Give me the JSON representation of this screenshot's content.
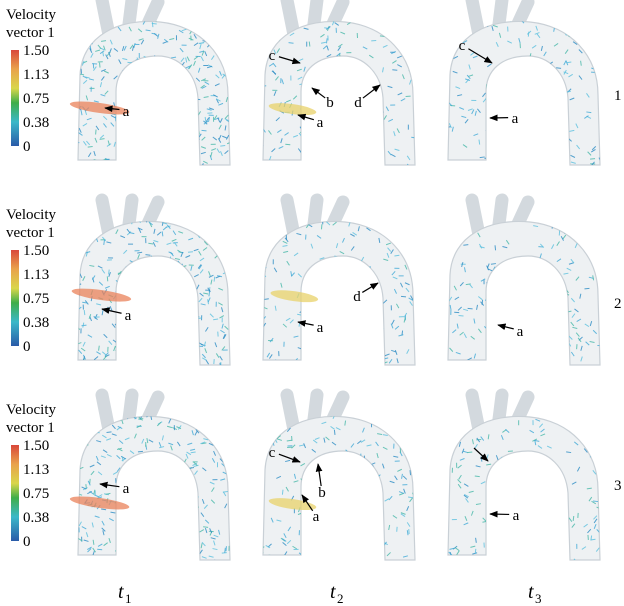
{
  "rows": [
    {
      "colorbar": {
        "title": [
          "Velocity",
          "vector 1"
        ],
        "ticks": [
          "1.50",
          "1.13",
          "0.75",
          "0.38",
          "0"
        ]
      },
      "label": "1",
      "panels": [
        {
          "annotations": [
            "a"
          ]
        },
        {
          "annotations": [
            "c",
            "b",
            "d",
            "a"
          ]
        },
        {
          "annotations": [
            "c",
            "a"
          ]
        }
      ]
    },
    {
      "colorbar": {
        "title": [
          "Velocity",
          "vector 1"
        ],
        "ticks": [
          "1.50",
          "1.13",
          "0.75",
          "0.38",
          "0"
        ]
      },
      "label": "2",
      "panels": [
        {
          "annotations": [
            "a"
          ]
        },
        {
          "annotations": [
            "d",
            "a"
          ]
        },
        {
          "annotations": [
            "a"
          ]
        }
      ]
    },
    {
      "colorbar": {
        "title": [
          "Velocity",
          "vector 1"
        ],
        "ticks": [
          "1.50",
          "1.13",
          "0.75",
          "0.38",
          "0"
        ]
      },
      "label": "3",
      "panels": [
        {
          "annotations": [
            "a"
          ]
        },
        {
          "annotations": [
            "c",
            "b",
            "a"
          ]
        },
        {
          "annotations": [
            "a"
          ]
        }
      ]
    }
  ],
  "columns": [
    {
      "symbol": "t",
      "subscript": "1"
    },
    {
      "symbol": "t",
      "subscript": "2"
    },
    {
      "symbol": "t",
      "subscript": "3"
    }
  ]
}
